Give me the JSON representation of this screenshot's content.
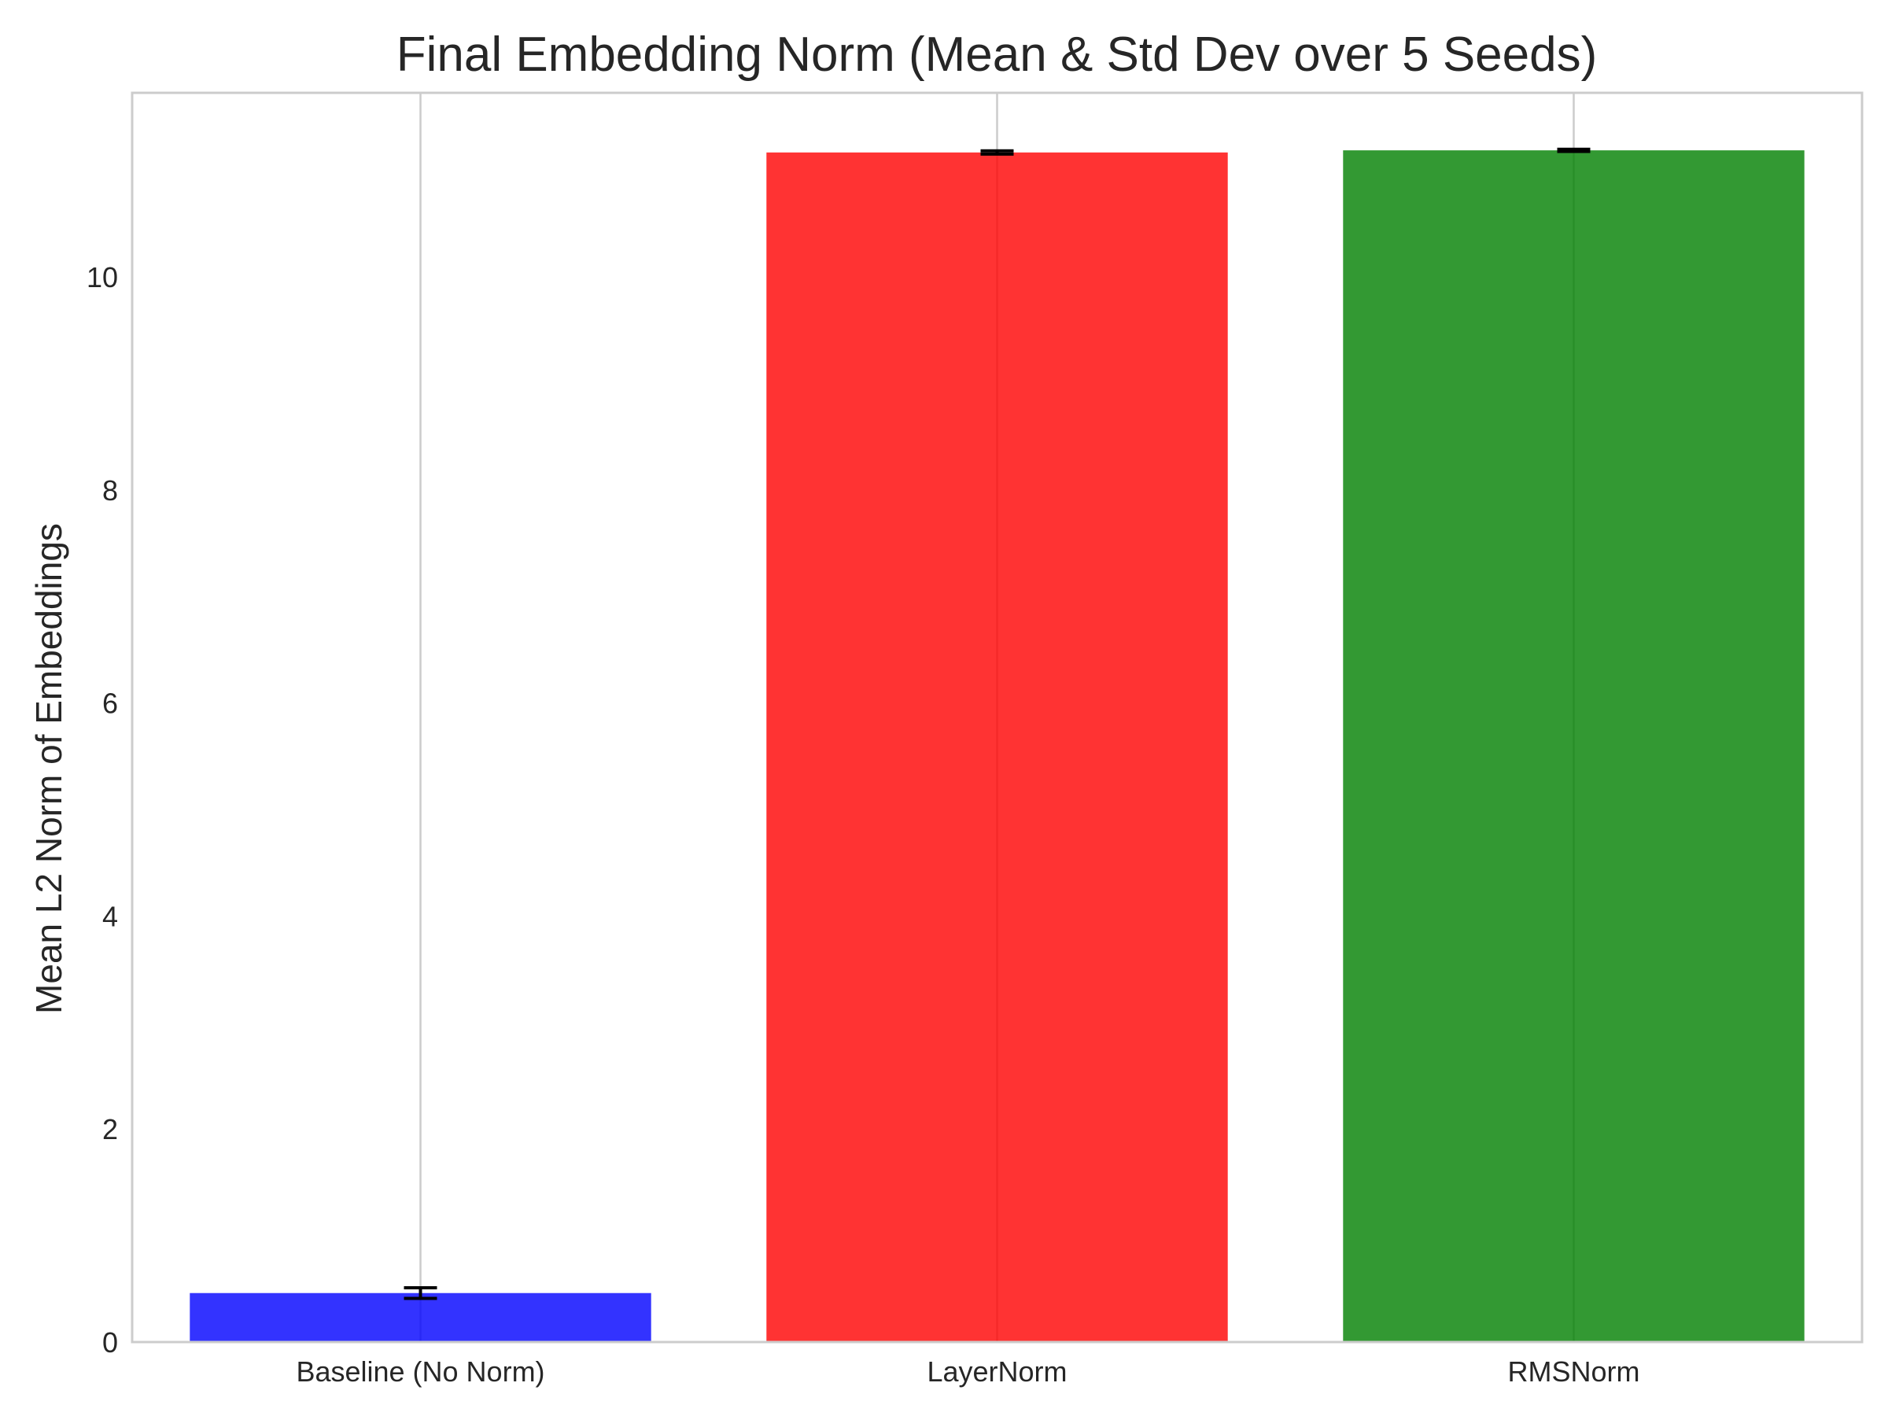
{
  "chart_data": {
    "type": "bar",
    "title": "Final Embedding Norm (Mean & Std Dev over 5 Seeds)",
    "xlabel": "",
    "ylabel": "Mean L2 Norm of Embeddings",
    "categories": [
      "Baseline (No Norm)",
      "LayerNorm",
      "RMSNorm"
    ],
    "values": [
      0.46,
      11.17,
      11.19
    ],
    "errors": [
      0.05,
      0.015,
      0.01
    ],
    "colors": [
      "#0000ff",
      "#ff0000",
      "#008000"
    ],
    "bar_opacity": 0.8,
    "ylim": [
      0,
      11.73
    ],
    "yticks": [
      0,
      2,
      4,
      6,
      8,
      10
    ],
    "grid": true,
    "legend": false
  }
}
